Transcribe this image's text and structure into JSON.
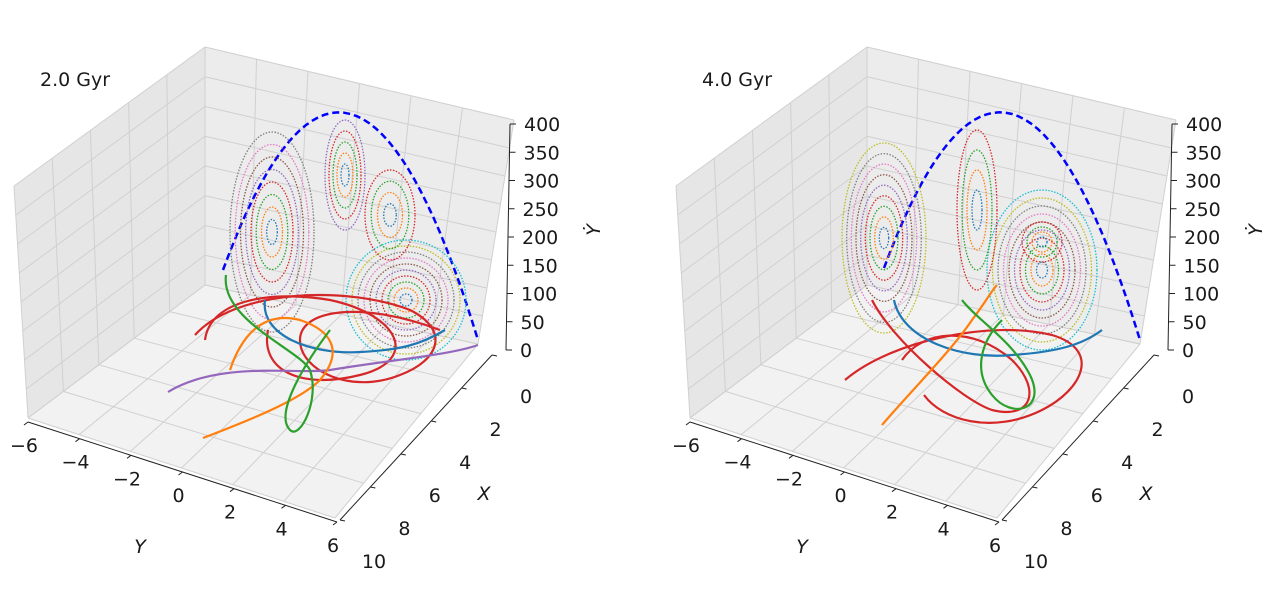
{
  "chart_data": [
    {
      "type": "line",
      "title": "2.0 Gyr",
      "xlabel": "Y",
      "ylabel": "X",
      "zlabel": "Ẏ",
      "x_ticks": [
        "−6",
        "−4",
        "−2",
        "0",
        "2",
        "4",
        "6"
      ],
      "y_ticks": [
        "0",
        "2",
        "4",
        "6",
        "8",
        "10"
      ],
      "z_ticks": [
        "0",
        "50",
        "100",
        "150",
        "200",
        "250",
        "300",
        "350",
        "400"
      ],
      "xlim": [
        -6,
        6
      ],
      "ylim": [
        0,
        10
      ],
      "zlim": [
        0,
        400
      ],
      "grid": true,
      "series": [
        {
          "color": "#1f77b4"
        },
        {
          "color": "#ff7f0e"
        },
        {
          "color": "#2ca02c"
        },
        {
          "color": "#d62728"
        },
        {
          "color": "#9467bd"
        },
        {
          "color": "#0000ff"
        }
      ]
    },
    {
      "type": "line",
      "title": "4.0 Gyr",
      "xlabel": "Y",
      "ylabel": "X",
      "zlabel": "Ẏ",
      "x_ticks": [
        "−6",
        "−4",
        "−2",
        "0",
        "2",
        "4",
        "6"
      ],
      "y_ticks": [
        "0",
        "2",
        "4",
        "6",
        "8",
        "10"
      ],
      "z_ticks": [
        "0",
        "50",
        "100",
        "150",
        "200",
        "250",
        "300",
        "350",
        "400"
      ],
      "xlim": [
        -6,
        6
      ],
      "ylim": [
        0,
        10
      ],
      "zlim": [
        0,
        400
      ],
      "grid": true,
      "series": [
        {
          "color": "#1f77b4"
        },
        {
          "color": "#ff7f0e"
        },
        {
          "color": "#2ca02c"
        },
        {
          "color": "#d62728"
        },
        {
          "color": "#0000ff"
        }
      ]
    }
  ]
}
